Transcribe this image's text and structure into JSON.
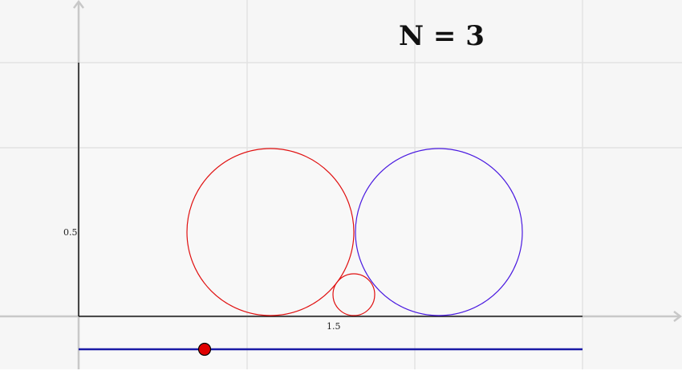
{
  "title": "N = 3",
  "axes": {
    "x_tick_label": "1.5",
    "y_tick_label": "0.5"
  },
  "slider": {
    "value_fraction": 0.25,
    "track_color": "#1a1aa6",
    "handle_color": "#e00000"
  },
  "colors": {
    "background": "#f6f6f6",
    "outer_background": "#ffffff",
    "grid": "#e2e2e2",
    "axis_gray": "#c8c8c8",
    "axis_black": "#000000",
    "circle_red": "#e01010",
    "circle_blue": "#4a1ae0"
  }
}
